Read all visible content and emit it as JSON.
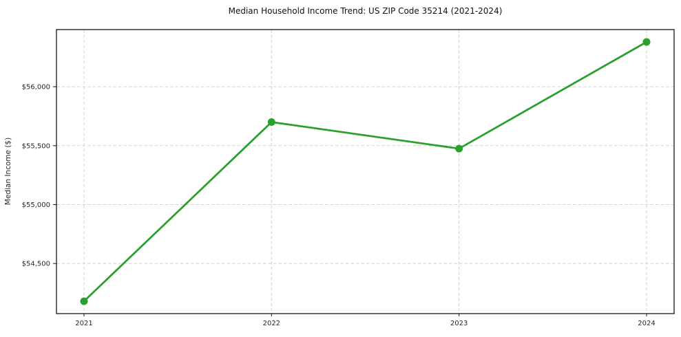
{
  "chart_data": {
    "type": "line",
    "title": "Median Household Income Trend: US ZIP Code 35214 (2021-2024)",
    "xlabel": "",
    "ylabel": "Median Income ($)",
    "categories": [
      "2021",
      "2022",
      "2023",
      "2024"
    ],
    "series": [
      {
        "name": "Median Household Income",
        "values": [
          54180,
          55700,
          55475,
          56380
        ],
        "color": "#2ca02c",
        "marker": "circle",
        "line_style": "solid"
      }
    ],
    "ylim": [
      54075,
      56485
    ],
    "y_ticks": [
      54500,
      55000,
      55500,
      56000
    ],
    "y_tick_labels": [
      "$54,500",
      "$55,000",
      "$55,500",
      "$56,000"
    ],
    "grid": "dashed, both axes",
    "legend_position": "none"
  },
  "colors": {
    "line": "#2ca02c",
    "grid": "#d0d0d0",
    "spine": "#000000",
    "tick_text": "#262626",
    "title_text": "#111111",
    "background": "#ffffff"
  }
}
